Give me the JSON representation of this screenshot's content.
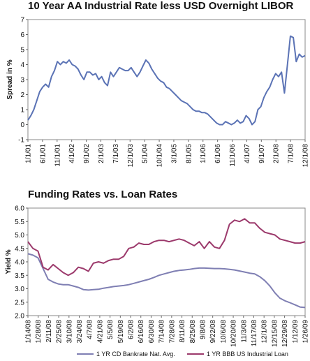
{
  "chart_data": [
    {
      "type": "line",
      "title": "10 Year AA Industrial Rate less USD Overnight LIBOR",
      "ylabel": "Spread in %",
      "xlabel": "",
      "ylim": [
        -1,
        7
      ],
      "yticks": [
        -1,
        0,
        1,
        2,
        3,
        4,
        5,
        6,
        7
      ],
      "grid": false,
      "legend": "none",
      "xticks": [
        "1/1/01",
        "6/1/01",
        "11/1/01",
        "4/1/02",
        "9/1/02",
        "2/1/03",
        "7/1/03",
        "12/1/03",
        "5/1/04",
        "10/1/04",
        "3/1/05",
        "8/1/05",
        "1/1/06",
        "6/1/06",
        "11/1/06",
        "4/1/07",
        "9/1/07",
        "2/1/08",
        "7/1/08",
        "12/1/08"
      ],
      "series": [
        {
          "color": "#5b73b5",
          "points": [
            [
              0,
              0.3
            ],
            [
              1,
              0.6
            ],
            [
              2,
              1.0
            ],
            [
              3,
              1.6
            ],
            [
              4,
              2.2
            ],
            [
              5,
              2.5
            ],
            [
              6,
              2.7
            ],
            [
              7,
              2.5
            ],
            [
              8,
              3.2
            ],
            [
              9,
              3.6
            ],
            [
              10,
              4.2
            ],
            [
              11,
              4.0
            ],
            [
              12,
              4.2
            ],
            [
              13,
              4.1
            ],
            [
              14,
              4.3
            ],
            [
              15,
              4.0
            ],
            [
              16,
              3.9
            ],
            [
              17,
              3.7
            ],
            [
              18,
              3.3
            ],
            [
              19,
              3.0
            ],
            [
              20,
              3.5
            ],
            [
              21,
              3.5
            ],
            [
              22,
              3.3
            ],
            [
              23,
              3.4
            ],
            [
              24,
              3.0
            ],
            [
              25,
              3.2
            ],
            [
              26,
              2.8
            ],
            [
              27,
              2.6
            ],
            [
              28,
              3.5
            ],
            [
              29,
              3.2
            ],
            [
              30,
              3.5
            ],
            [
              31,
              3.8
            ],
            [
              32,
              3.7
            ],
            [
              33,
              3.6
            ],
            [
              34,
              3.6
            ],
            [
              35,
              3.8
            ],
            [
              36,
              3.5
            ],
            [
              37,
              3.2
            ],
            [
              38,
              3.5
            ],
            [
              39,
              3.9
            ],
            [
              40,
              4.3
            ],
            [
              41,
              4.1
            ],
            [
              42,
              3.7
            ],
            [
              43,
              3.4
            ],
            [
              44,
              3.1
            ],
            [
              45,
              2.9
            ],
            [
              46,
              2.8
            ],
            [
              47,
              2.5
            ],
            [
              48,
              2.4
            ],
            [
              49,
              2.2
            ],
            [
              50,
              2.0
            ],
            [
              51,
              1.8
            ],
            [
              52,
              1.6
            ],
            [
              53,
              1.5
            ],
            [
              54,
              1.4
            ],
            [
              55,
              1.2
            ],
            [
              56,
              1.0
            ],
            [
              57,
              0.9
            ],
            [
              58,
              0.9
            ],
            [
              59,
              0.8
            ],
            [
              60,
              0.8
            ],
            [
              61,
              0.7
            ],
            [
              62,
              0.5
            ],
            [
              63,
              0.3
            ],
            [
              64,
              0.1
            ],
            [
              65,
              0.0
            ],
            [
              66,
              0.0
            ],
            [
              67,
              0.2
            ],
            [
              68,
              0.1
            ],
            [
              69,
              0.0
            ],
            [
              70,
              0.1
            ],
            [
              71,
              0.3
            ],
            [
              72,
              0.1
            ],
            [
              73,
              0.2
            ],
            [
              74,
              0.6
            ],
            [
              75,
              0.4
            ],
            [
              76,
              0.0
            ],
            [
              77,
              0.2
            ],
            [
              78,
              1.0
            ],
            [
              79,
              1.2
            ],
            [
              80,
              1.8
            ],
            [
              81,
              2.2
            ],
            [
              82,
              2.5
            ],
            [
              83,
              3.0
            ],
            [
              84,
              3.4
            ],
            [
              85,
              3.2
            ],
            [
              86,
              3.5
            ],
            [
              87,
              2.1
            ],
            [
              88,
              4.0
            ],
            [
              89,
              5.9
            ],
            [
              90,
              5.8
            ],
            [
              91,
              4.2
            ],
            [
              92,
              4.7
            ],
            [
              93,
              4.5
            ],
            [
              94,
              4.6
            ]
          ]
        }
      ]
    },
    {
      "type": "line",
      "title": "Funding Rates vs. Loan Rates",
      "ylabel": "Yield %",
      "xlabel": "",
      "ylim": [
        2.0,
        6.0
      ],
      "yticks": [
        "2.0",
        "2.5",
        "3.0",
        "3.5",
        "4.0",
        "4.5",
        "5.0",
        "5.5",
        "6.0"
      ],
      "grid": false,
      "legend": "bottom",
      "xticks": [
        "1/14/08",
        "1/28/08",
        "2/11/08",
        "2/25/08",
        "3/10/08",
        "3/24/08",
        "4/7/08",
        "4/21/08",
        "5/5/08",
        "5/19/08",
        "6/2/08",
        "6/16/08",
        "6/30/08",
        "7/14/08",
        "7/28/08",
        "8/11/08",
        "8/25/08",
        "9/8/08",
        "9/22/08",
        "10/6/08",
        "10/20/08",
        "11/3/08",
        "11/17/08",
        "12/1/08",
        "12/15/08",
        "12/29/08",
        "1/12/09",
        "1/26/09"
      ],
      "series": [
        {
          "name": "1 YR CD Bankrate Nat. Avg.",
          "color": "#7f7fb3",
          "points": [
            [
              0,
              4.3
            ],
            [
              0.5,
              4.25
            ],
            [
              1,
              4.15
            ],
            [
              1.5,
              3.75
            ],
            [
              2,
              3.35
            ],
            [
              2.5,
              3.25
            ],
            [
              3,
              3.18
            ],
            [
              3.5,
              3.15
            ],
            [
              4,
              3.15
            ],
            [
              4.5,
              3.1
            ],
            [
              5,
              3.05
            ],
            [
              5.5,
              2.97
            ],
            [
              6,
              2.95
            ],
            [
              6.5,
              2.97
            ],
            [
              7,
              2.98
            ],
            [
              7.5,
              3.02
            ],
            [
              8,
              3.05
            ],
            [
              8.5,
              3.08
            ],
            [
              9,
              3.1
            ],
            [
              9.5,
              3.12
            ],
            [
              10,
              3.15
            ],
            [
              10.5,
              3.2
            ],
            [
              11,
              3.25
            ],
            [
              11.5,
              3.3
            ],
            [
              12,
              3.35
            ],
            [
              12.5,
              3.42
            ],
            [
              13,
              3.5
            ],
            [
              13.5,
              3.55
            ],
            [
              14,
              3.6
            ],
            [
              14.5,
              3.65
            ],
            [
              15,
              3.68
            ],
            [
              15.5,
              3.7
            ],
            [
              16,
              3.72
            ],
            [
              16.5,
              3.75
            ],
            [
              17,
              3.77
            ],
            [
              17.5,
              3.77
            ],
            [
              18,
              3.76
            ],
            [
              18.5,
              3.75
            ],
            [
              19,
              3.75
            ],
            [
              19.5,
              3.74
            ],
            [
              20,
              3.72
            ],
            [
              20.5,
              3.7
            ],
            [
              21,
              3.66
            ],
            [
              21.5,
              3.62
            ],
            [
              22,
              3.58
            ],
            [
              22.5,
              3.55
            ],
            [
              23,
              3.45
            ],
            [
              23.5,
              3.3
            ],
            [
              24,
              3.1
            ],
            [
              24.5,
              2.85
            ],
            [
              25,
              2.65
            ],
            [
              25.5,
              2.55
            ],
            [
              26,
              2.48
            ],
            [
              26.5,
              2.4
            ],
            [
              27,
              2.32
            ],
            [
              27.5,
              2.3
            ]
          ]
        },
        {
          "name": "1 YR BBB US Industrial Loan",
          "color": "#9c3a6c",
          "points": [
            [
              0,
              4.75
            ],
            [
              0.5,
              4.5
            ],
            [
              1,
              4.4
            ],
            [
              1.5,
              3.8
            ],
            [
              2,
              3.7
            ],
            [
              2.5,
              3.9
            ],
            [
              3,
              3.75
            ],
            [
              3.5,
              3.6
            ],
            [
              4,
              3.5
            ],
            [
              4.5,
              3.6
            ],
            [
              5,
              3.8
            ],
            [
              5.5,
              3.75
            ],
            [
              6,
              3.65
            ],
            [
              6.5,
              3.95
            ],
            [
              7,
              4.0
            ],
            [
              7.5,
              3.95
            ],
            [
              8,
              4.05
            ],
            [
              8.5,
              4.1
            ],
            [
              9,
              4.1
            ],
            [
              9.5,
              4.2
            ],
            [
              10,
              4.5
            ],
            [
              10.5,
              4.55
            ],
            [
              11,
              4.7
            ],
            [
              11.5,
              4.65
            ],
            [
              12,
              4.65
            ],
            [
              12.5,
              4.75
            ],
            [
              13,
              4.8
            ],
            [
              13.5,
              4.8
            ],
            [
              14,
              4.75
            ],
            [
              14.5,
              4.8
            ],
            [
              15,
              4.85
            ],
            [
              15.5,
              4.8
            ],
            [
              16,
              4.7
            ],
            [
              16.5,
              4.6
            ],
            [
              17,
              4.75
            ],
            [
              17.5,
              4.5
            ],
            [
              18,
              4.75
            ],
            [
              18.5,
              4.55
            ],
            [
              19,
              4.5
            ],
            [
              19.5,
              4.8
            ],
            [
              20,
              5.4
            ],
            [
              20.5,
              5.55
            ],
            [
              21,
              5.5
            ],
            [
              21.5,
              5.6
            ],
            [
              22,
              5.45
            ],
            [
              22.5,
              5.45
            ],
            [
              23,
              5.25
            ],
            [
              23.5,
              5.1
            ],
            [
              24,
              5.05
            ],
            [
              24.5,
              5.0
            ],
            [
              25,
              4.85
            ],
            [
              25.5,
              4.8
            ],
            [
              26,
              4.75
            ],
            [
              26.5,
              4.7
            ],
            [
              27,
              4.7
            ],
            [
              27.5,
              4.75
            ]
          ]
        }
      ]
    }
  ]
}
